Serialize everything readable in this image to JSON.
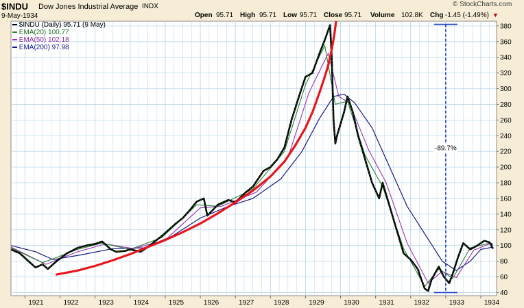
{
  "header": {
    "symbol": "$INDU",
    "name": "Dow Jones Industrial Average",
    "exchange": "INDX",
    "date": "9-May-1934",
    "open_label": "Open",
    "open_value": "95.71",
    "high_label": "High",
    "high_value": "95.71",
    "low_label": "Low",
    "low_value": "95.71",
    "close_label": "Close",
    "close_value": "95.71",
    "volume_label": "Volume",
    "volume_value": "102.8K",
    "chg_label": "Chg",
    "chg_value": "-1.45 (-1.49%)",
    "watermark": "© StockCharts.com"
  },
  "colors": {
    "background": "#f7edd6",
    "plot_bg": "#ffffff",
    "grid": "#b9d6ec",
    "price": "#000000",
    "price_green": "#1f7a1f",
    "ema20": "#2e7d32",
    "ema50": "#9b30b5",
    "ema200": "#14148c",
    "trend": "#e8151b",
    "measure": "#1e3ec7",
    "chg_arrow": "#c00000"
  },
  "chart_data": {
    "type": "line",
    "title": "$INDU Dow Jones Industrial Average INDX",
    "xlabel": "",
    "ylabel": "",
    "xlim": [
      1920.6,
      1934.45
    ],
    "ylim": [
      36,
      386
    ],
    "x_ticks": [
      1921,
      1922,
      1923,
      1924,
      1925,
      1926,
      1927,
      1928,
      1929,
      1930,
      1931,
      1932,
      1933,
      1934
    ],
    "x_tick_labels": [
      "1921",
      "1922",
      "1923",
      "1924",
      "1925",
      "1926",
      "1927",
      "1928",
      "1929",
      "1930",
      "1931",
      "1932",
      "1933",
      "1934"
    ],
    "y_ticks": [
      40,
      60,
      80,
      100,
      120,
      140,
      160,
      180,
      200,
      220,
      240,
      260,
      280,
      300,
      320,
      340,
      360,
      380
    ],
    "y_tick_labels": [
      "40",
      "60",
      "80",
      "100",
      "120",
      "140",
      "160",
      "180",
      "200",
      "220",
      "240",
      "260",
      "280",
      "300",
      "320",
      "340",
      "360",
      "380"
    ],
    "legend": [
      {
        "label": "$INDU (Daily) 95.71 (9 May)",
        "series": "price"
      },
      {
        "label": "EMA(20) 100.77",
        "series": "ema20"
      },
      {
        "label": "EMA(50) 102.18",
        "series": "ema50"
      },
      {
        "label": "EMA(200) 97.98",
        "series": "ema200"
      }
    ],
    "legend_position": "top-left",
    "series": [
      {
        "name": "$INDU (Daily)",
        "key": "price",
        "x": [
          1920.6,
          1920.85,
          1921.1,
          1921.3,
          1921.5,
          1921.65,
          1921.9,
          1922.2,
          1922.5,
          1922.75,
          1923.0,
          1923.2,
          1923.45,
          1923.6,
          1923.85,
          1924.0,
          1924.3,
          1924.5,
          1924.7,
          1924.9,
          1925.1,
          1925.3,
          1925.5,
          1925.7,
          1925.9,
          1926.1,
          1926.2,
          1926.5,
          1926.8,
          1927.0,
          1927.3,
          1927.5,
          1927.8,
          1928.0,
          1928.2,
          1928.4,
          1928.6,
          1928.85,
          1929.0,
          1929.2,
          1929.4,
          1929.55,
          1929.7,
          1929.75,
          1929.8,
          1929.85,
          1929.9,
          1930.1,
          1930.2,
          1930.35,
          1930.5,
          1930.7,
          1930.9,
          1931.1,
          1931.2,
          1931.4,
          1931.6,
          1931.8,
          1932.0,
          1932.2,
          1932.4,
          1932.5,
          1932.6,
          1932.8,
          1932.95,
          1933.1,
          1933.2,
          1933.35,
          1933.5,
          1933.7,
          1933.9,
          1934.1,
          1934.25,
          1934.35
        ],
        "values": [
          95,
          90,
          80,
          72,
          76,
          70,
          80,
          90,
          97,
          100,
          102,
          105,
          95,
          92,
          93,
          95,
          92,
          98,
          105,
          112,
          120,
          128,
          135,
          145,
          156,
          160,
          138,
          152,
          158,
          155,
          168,
          175,
          195,
          200,
          210,
          225,
          260,
          295,
          315,
          320,
          345,
          362,
          381,
          340,
          260,
          230,
          240,
          270,
          290,
          270,
          240,
          210,
          180,
          160,
          180,
          150,
          120,
          90,
          82,
          70,
          45,
          42,
          57,
          73,
          60,
          52,
          64,
          85,
          103,
          95,
          100,
          106,
          104,
          96
        ]
      },
      {
        "name": "EMA(20)",
        "key": "ema20",
        "x": [
          1920.6,
          1921.5,
          1922.5,
          1923.2,
          1924.0,
          1924.9,
          1925.9,
          1926.5,
          1927.5,
          1928.4,
          1929.0,
          1929.55,
          1929.85,
          1930.2,
          1930.7,
          1931.2,
          1931.8,
          1932.4,
          1932.8,
          1933.2,
          1933.7,
          1934.25,
          1934.35
        ],
        "values": [
          97,
          78,
          95,
          103,
          95,
          110,
          152,
          150,
          172,
          220,
          305,
          355,
          280,
          284,
          215,
          175,
          96,
          48,
          70,
          58,
          97,
          103,
          101
        ]
      },
      {
        "name": "EMA(50)",
        "key": "ema50",
        "x": [
          1920.6,
          1921.6,
          1922.5,
          1923.3,
          1924.1,
          1925.0,
          1926.0,
          1926.6,
          1927.6,
          1928.5,
          1929.1,
          1929.65,
          1929.95,
          1930.25,
          1930.8,
          1931.3,
          1931.9,
          1932.5,
          1932.9,
          1933.3,
          1933.8,
          1934.3,
          1934.35
        ],
        "values": [
          98,
          76,
          92,
          102,
          96,
          107,
          148,
          150,
          168,
          212,
          295,
          345,
          290,
          282,
          222,
          180,
          103,
          52,
          67,
          59,
          94,
          103,
          102
        ]
      },
      {
        "name": "EMA(200)",
        "key": "ema200",
        "x": [
          1920.6,
          1921.3,
          1921.8,
          1922.6,
          1923.5,
          1924.4,
          1925.2,
          1926.0,
          1926.8,
          1927.5,
          1928.3,
          1928.9,
          1929.4,
          1929.8,
          1930.1,
          1930.4,
          1930.9,
          1931.4,
          1931.9,
          1932.4,
          1932.9,
          1933.3,
          1933.7,
          1934.0,
          1934.35
        ],
        "values": [
          100,
          92,
          82,
          88,
          96,
          97,
          112,
          135,
          150,
          160,
          185,
          220,
          262,
          290,
          293,
          282,
          250,
          200,
          150,
          115,
          80,
          68,
          80,
          95,
          98
        ]
      },
      {
        "name": "Parabolic trend",
        "key": "trend",
        "x": [
          1921.9,
          1922.5,
          1923.0,
          1923.5,
          1924.0,
          1924.5,
          1925.0,
          1925.5,
          1926.0,
          1926.5,
          1927.0,
          1927.5,
          1928.0,
          1928.4,
          1928.7,
          1929.0,
          1929.2,
          1929.4,
          1929.55,
          1929.65,
          1929.75,
          1929.82,
          1929.87
        ],
        "values": [
          63,
          68,
          74,
          81,
          89,
          98,
          107,
          117,
          128,
          141,
          155,
          170,
          188,
          207,
          227,
          250,
          270,
          295,
          315,
          330,
          350,
          368,
          385
        ]
      }
    ],
    "annotations": [
      {
        "type": "measure",
        "x": 1933.0,
        "y_from": 382,
        "y_to": 40,
        "label": "-89.7%"
      }
    ]
  }
}
